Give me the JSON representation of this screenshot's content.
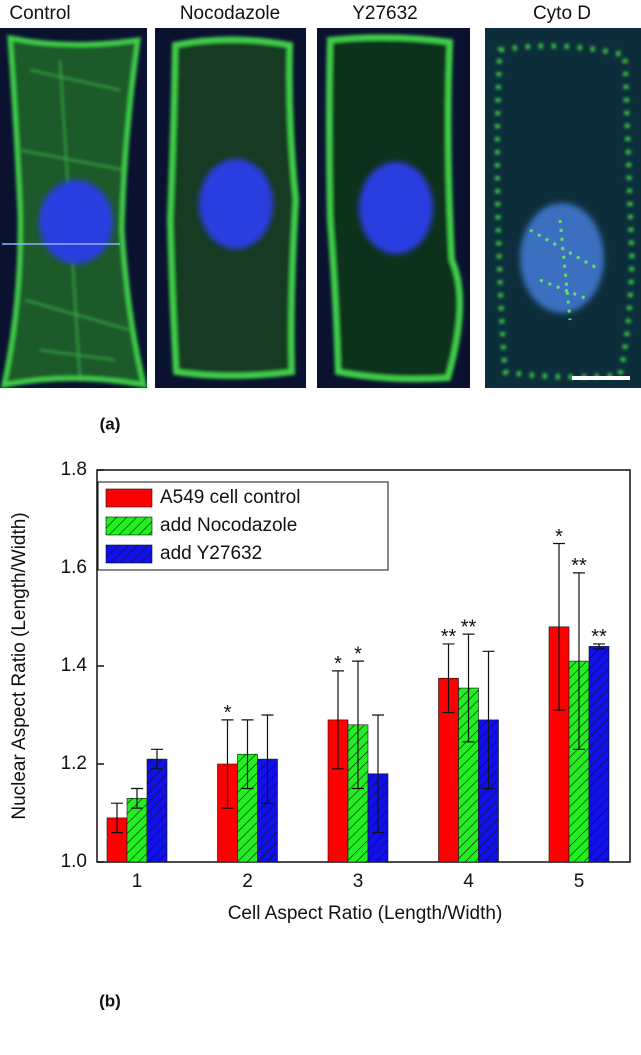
{
  "image_panels": {
    "labels": [
      "Control",
      "Nocodazole",
      "Y27632",
      "Cyto D"
    ]
  },
  "panel_labels": [
    "(a)",
    "(b)"
  ],
  "chart_data": {
    "type": "bar",
    "y_label": "Nuclear Aspect Ratio (Length/Width)",
    "x_label": "Cell Aspect Ratio (Length/Width)",
    "categories": [
      "1",
      "2",
      "3",
      "4",
      "5"
    ],
    "ylim": [
      1.0,
      1.8
    ],
    "yticks": [
      {
        "value": 1.0,
        "label": "1.0"
      },
      1.2,
      1.4,
      1.6,
      1.8
    ],
    "legend": "upper left",
    "series": [
      {
        "name": "A549 cell control",
        "color": "#ff0000",
        "hatch": false,
        "values": [
          1.09,
          1.2,
          1.29,
          1.375,
          1.48
        ],
        "errors": [
          0.03,
          0.09,
          0.1,
          0.07,
          0.17
        ],
        "annotations": [
          null,
          "*",
          "*",
          "**",
          "*"
        ]
      },
      {
        "name": "add Nocodazole",
        "color": "#22ee22",
        "hatch": true,
        "values": [
          1.13,
          1.22,
          1.28,
          1.355,
          1.41
        ],
        "errors": [
          0.02,
          0.07,
          0.13,
          0.11,
          0.18
        ],
        "annotations": [
          null,
          null,
          "*",
          "**",
          "**"
        ]
      },
      {
        "name": "add Y27632",
        "color": "#1010ee",
        "hatch": true,
        "values": [
          1.21,
          1.21,
          1.18,
          1.29,
          1.44
        ],
        "errors": [
          0.02,
          0.09,
          0.12,
          0.14,
          0.005
        ],
        "annotations": [
          null,
          null,
          null,
          null,
          "**"
        ]
      }
    ]
  }
}
